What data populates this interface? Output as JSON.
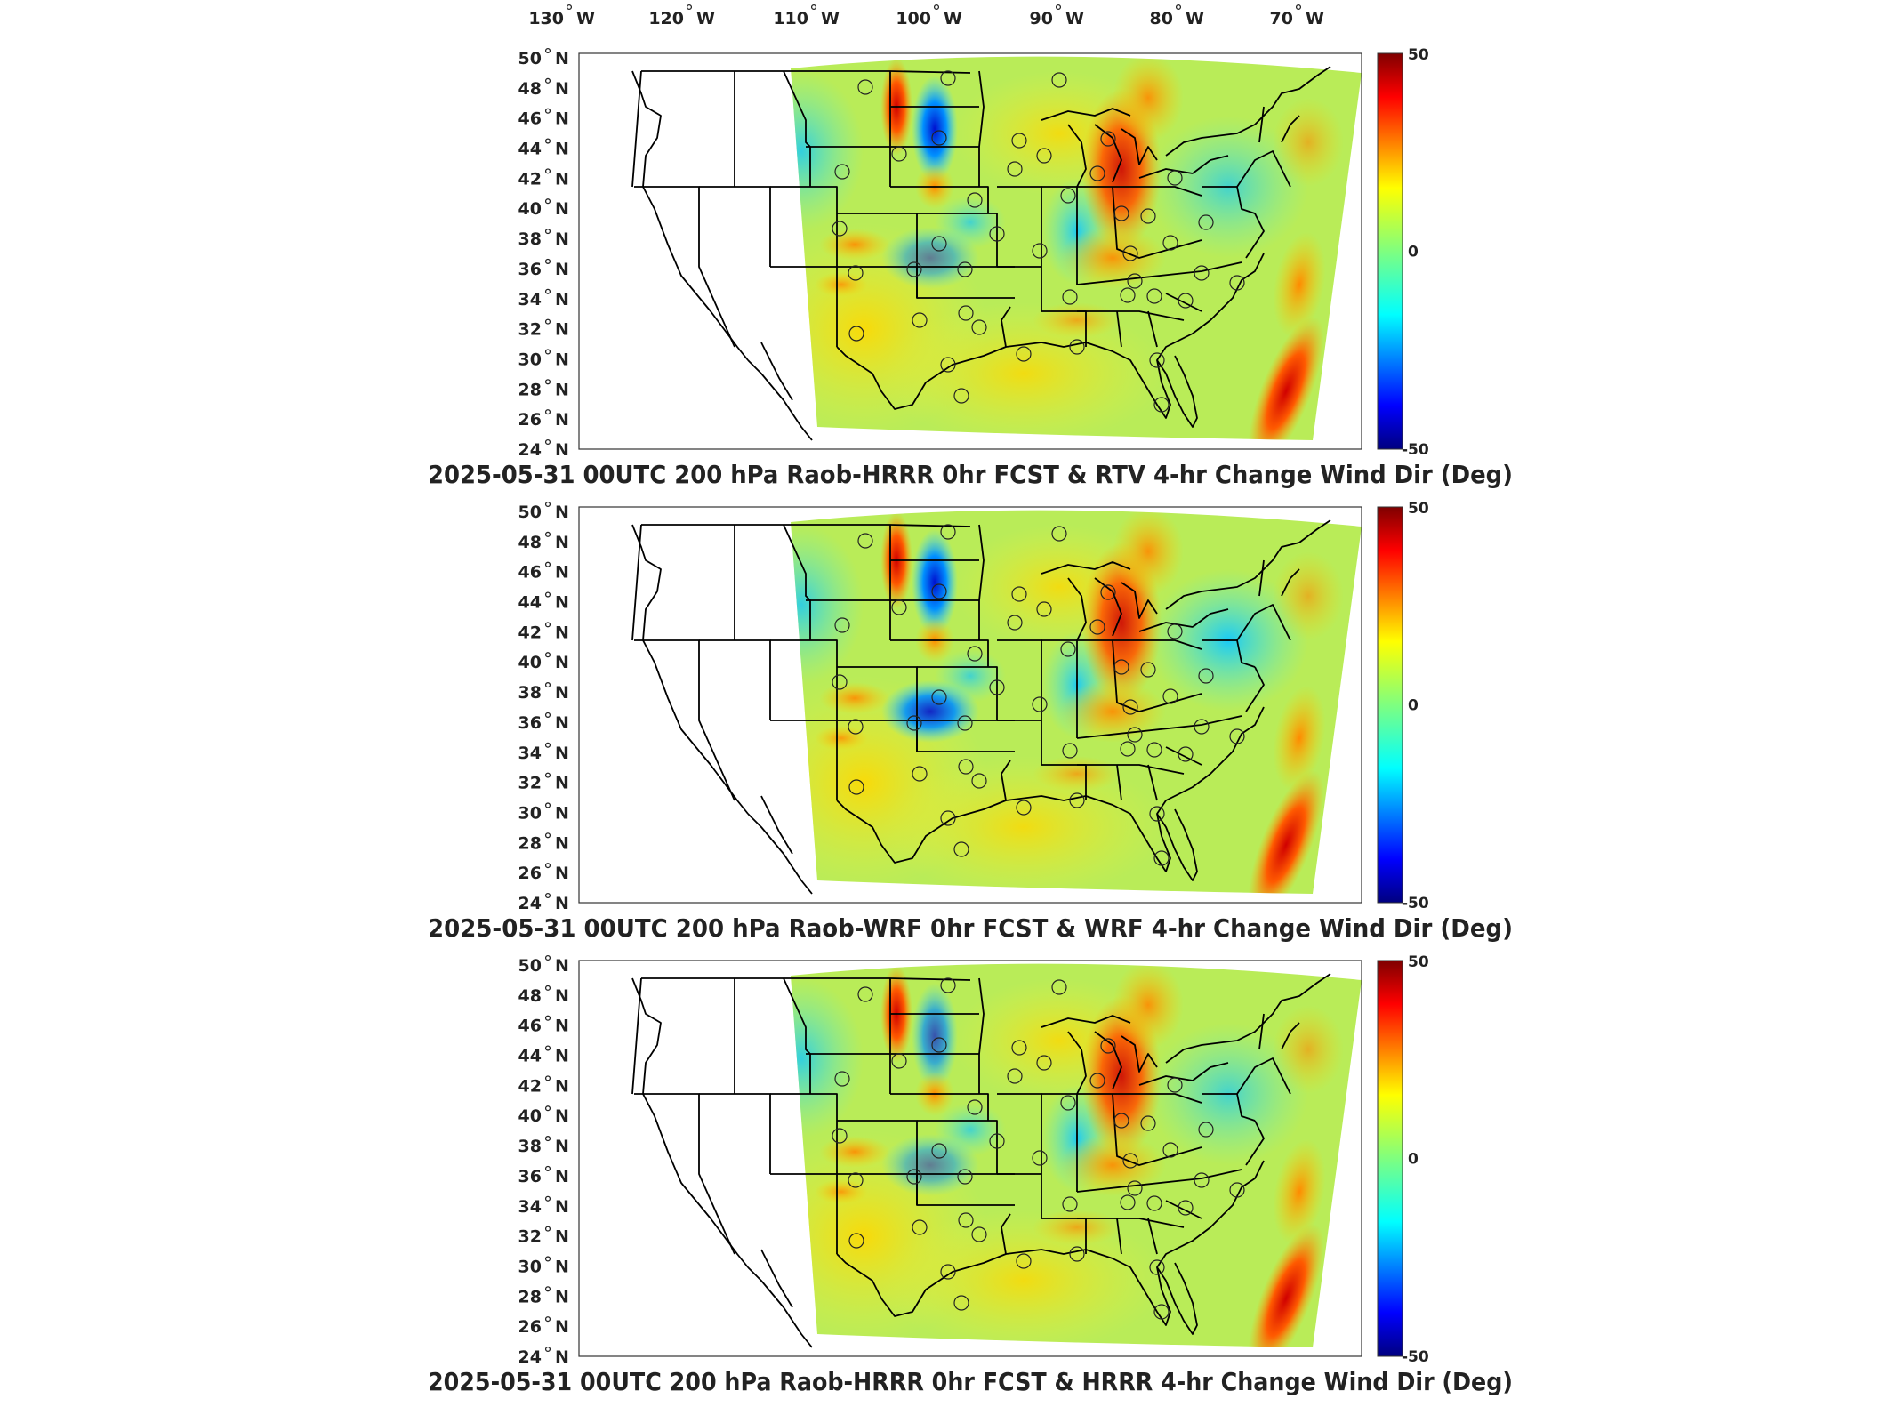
{
  "top_axis": {
    "lon_ticks": [
      {
        "deg": "130",
        "dir": "W"
      },
      {
        "deg": "120",
        "dir": "W"
      },
      {
        "deg": "110",
        "dir": "W"
      },
      {
        "deg": "100",
        "dir": "W"
      },
      {
        "deg": "90",
        "dir": "W"
      },
      {
        "deg": "80",
        "dir": "W"
      },
      {
        "deg": "70",
        "dir": "W"
      }
    ]
  },
  "lat_ticks": [
    {
      "deg": "50",
      "dir": "N"
    },
    {
      "deg": "48",
      "dir": "N"
    },
    {
      "deg": "46",
      "dir": "N"
    },
    {
      "deg": "44",
      "dir": "N"
    },
    {
      "deg": "42",
      "dir": "N"
    },
    {
      "deg": "40",
      "dir": "N"
    },
    {
      "deg": "38",
      "dir": "N"
    },
    {
      "deg": "36",
      "dir": "N"
    },
    {
      "deg": "34",
      "dir": "N"
    },
    {
      "deg": "32",
      "dir": "N"
    },
    {
      "deg": "30",
      "dir": "N"
    },
    {
      "deg": "28",
      "dir": "N"
    },
    {
      "deg": "26",
      "dir": "N"
    },
    {
      "deg": "24",
      "dir": "N"
    }
  ],
  "colorbar": {
    "max_label": "50",
    "mid_label": "0",
    "min_label": "-50"
  },
  "panels": [
    {
      "title": "2025-05-31 00UTC 200 hPa Raob-HRRR 0hr FCST & RTV 4-hr Change Wind Dir (Deg)"
    },
    {
      "title": "2025-05-31 00UTC 200 hPa Raob-WRF 0hr FCST & WRF 4-hr Change Wind Dir (Deg)"
    },
    {
      "title": "2025-05-31 00UTC 200 hPa Raob-HRRR 0hr FCST & HRRR 4-hr Change Wind Dir (Deg)"
    }
  ],
  "colors": {
    "jet": [
      "#00007f",
      "#0000ff",
      "#007fff",
      "#00ffff",
      "#7fff7f",
      "#ffff00",
      "#ff7f00",
      "#ff0000",
      "#7f0000"
    ],
    "background_field": "#a8ec62",
    "outline": "#000000"
  }
}
